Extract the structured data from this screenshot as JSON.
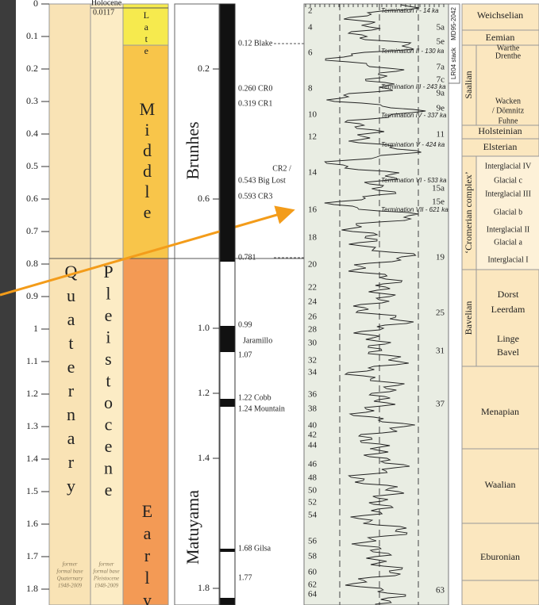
{
  "age_axis": {
    "ticks": [
      0,
      0.1,
      0.2,
      0.3,
      0.4,
      0.5,
      0.6,
      0.7,
      0.8,
      0.9,
      1.0,
      1.1,
      1.2,
      1.3,
      1.4,
      1.5,
      1.6,
      1.7,
      1.8
    ]
  },
  "system": {
    "name": "Quaternary",
    "note": [
      "former",
      "formal base",
      "Quaternary",
      "1948-2009"
    ]
  },
  "series": {
    "name": "Pleistocene",
    "note": [
      "former",
      "formal base",
      "Pleistocene",
      "1948-2009"
    ],
    "holocene": "Holocene",
    "holocene_age": "0.0117"
  },
  "subseries": [
    "Late",
    "Middle",
    "Early"
  ],
  "polarity": {
    "chrons": [
      "Brunhes",
      "Matuyama"
    ],
    "axis_labels": [
      "0.2",
      "0.6",
      "1.0",
      "1.2",
      "1.4",
      "1.8"
    ],
    "events": [
      "0.12 Blake",
      "0.260 CR0",
      "0.319 CR1",
      "CR2 /",
      "0.543 Big Lost",
      "0.593 CR3",
      "0.781",
      "0.99",
      "Jaramillo",
      "1.07",
      "1.22 Cobb",
      "1.24 Mountain",
      "1.68 Gilsa",
      "1.77"
    ]
  },
  "stack": {
    "label": "LR04 stack",
    "core": "MD95-2042",
    "mis_left": [
      "2",
      "4",
      "6",
      "8",
      "10",
      "12",
      "14",
      "16",
      "18",
      "20",
      "22",
      "24",
      "26",
      "28",
      "30",
      "32",
      "34",
      "36",
      "38",
      "40",
      "42",
      "44",
      "46",
      "48",
      "50",
      "52",
      "54",
      "56",
      "58",
      "60",
      "62",
      "64"
    ],
    "mis_right": [
      "5a",
      "5e",
      "7a",
      "7c",
      "9a",
      "9e",
      "11",
      "15a",
      "15e",
      "19",
      "25",
      "31",
      "37",
      "63"
    ],
    "terminations": [
      "Termination I - 14 ka",
      "Termination II - 130 ka",
      "Termination III - 243 ka",
      "Termination IV - 337 ka",
      "Termination V - 424 ka",
      "Termination VI - 533 ka",
      "Termination VII - 621 ka"
    ]
  },
  "stages": {
    "groups": [
      "Saalian",
      "‘Cromerian complex’",
      "Bavelian"
    ],
    "names": [
      "Weichselian",
      "Eemian",
      "Warthe",
      "Drenthe",
      "Wacken",
      "/ Dömnitz",
      "Fuhne",
      "Holsteinian",
      "Elsterian",
      "Interglacial IV",
      "Glacial c",
      "Interglacial III",
      "Glacial b",
      "Interglacial II",
      "Glacial a",
      "Interglacial I",
      "Dorst",
      "Leerdam",
      "Linge",
      "Bavel",
      "Menapian",
      "Waalian",
      "Eburonian"
    ]
  }
}
